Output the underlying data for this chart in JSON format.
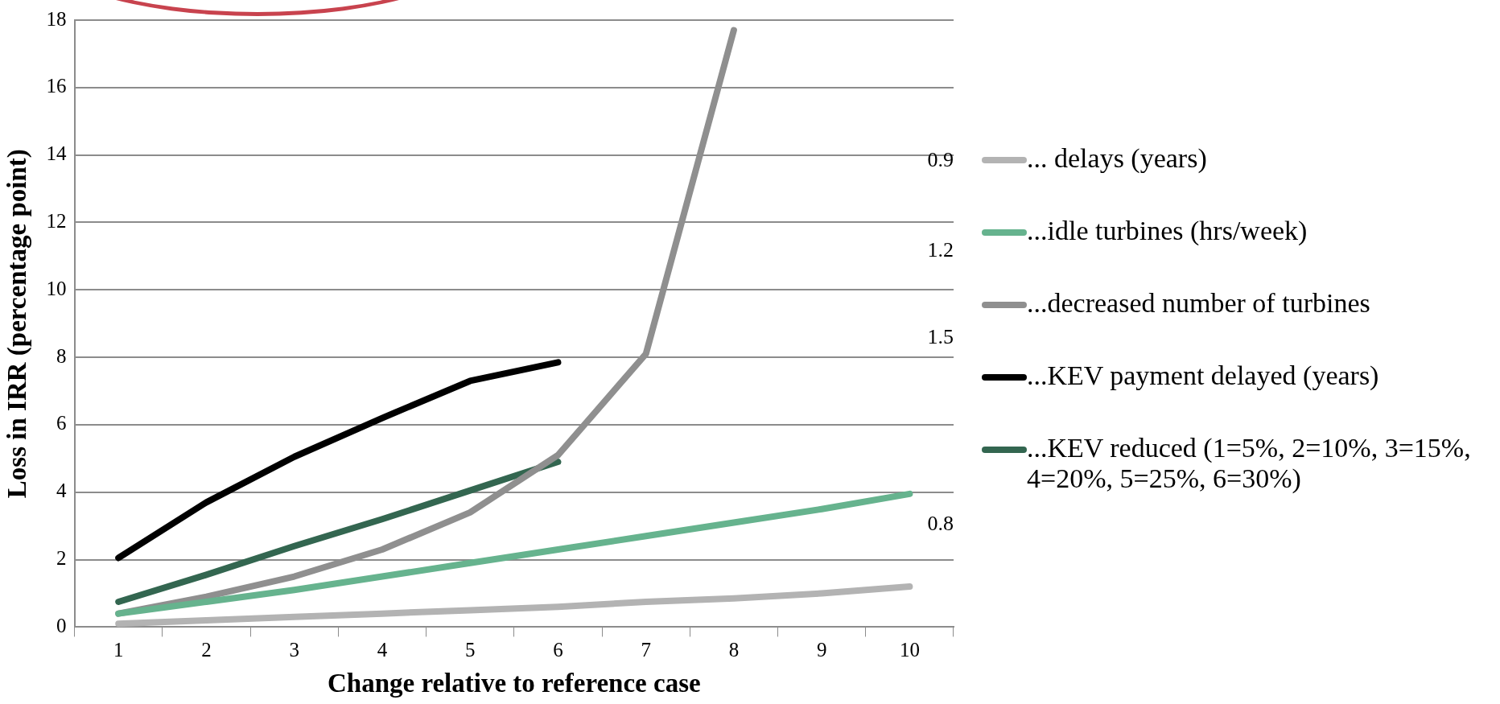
{
  "chart_data": {
    "type": "line",
    "xlabel": "Change relative to reference case",
    "ylabel": "Loss in IRR (percentage point)",
    "categories": [
      "1",
      "2",
      "3",
      "4",
      "5",
      "6",
      "7",
      "8",
      "9",
      "10"
    ],
    "series": [
      {
        "name": "... delays (years)",
        "color": "#b3b3b3",
        "values": [
          0.1,
          0.2,
          0.3,
          0.4,
          0.5,
          0.6,
          0.75,
          0.85,
          1.0,
          1.2
        ]
      },
      {
        "name": "...idle turbines (hrs/week)",
        "color": "#66b38e",
        "values": [
          0.4,
          0.75,
          1.1,
          1.5,
          1.9,
          2.3,
          2.7,
          3.1,
          3.5,
          3.95
        ]
      },
      {
        "name": "...decreased number of turbines",
        "color": "#8f8f8f",
        "values": [
          0.4,
          0.9,
          1.5,
          2.3,
          3.4,
          5.1,
          8.1,
          17.7,
          null,
          null
        ]
      },
      {
        "name": "...KEV payment delayed (years)",
        "color": "#000000",
        "values": [
          2.05,
          3.7,
          5.05,
          6.2,
          7.3,
          7.85,
          null,
          null,
          null,
          null
        ]
      },
      {
        "name": "...KEV reduced (1=5%, 2=10%, 3=15%, 4=20%, 5=25%, 6=30%)",
        "color": "#336650",
        "values": [
          0.75,
          1.55,
          2.4,
          3.2,
          4.05,
          4.9,
          null,
          null,
          null,
          null
        ]
      }
    ],
    "ylim": [
      0,
      18
    ],
    "yticks": [
      0,
      2,
      4,
      6,
      8,
      10,
      12,
      14,
      16,
      18
    ],
    "grid": "y",
    "legend": "right",
    "marker": "none",
    "line_style": "solid",
    "annotations": [
      "0.9",
      "1.2",
      "1.5",
      "0.8"
    ]
  }
}
